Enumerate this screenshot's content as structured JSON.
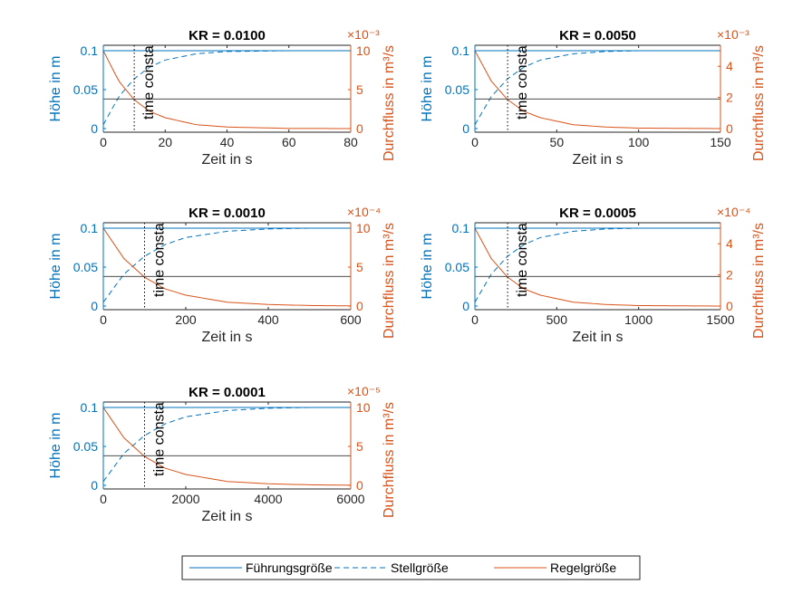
{
  "figure": {
    "legend": {
      "placement": "bottom-center",
      "entries": [
        {
          "label": "Führungsgröße",
          "style": "solid",
          "color": "#0072BD"
        },
        {
          "label": "Stellgröße",
          "style": "dashed",
          "color": "#0072BD"
        },
        {
          "label": "Regelgröße",
          "style": "solid",
          "color": "#D95319"
        }
      ]
    },
    "colors": {
      "left_axis": "#0072BD",
      "right_axis": "#D95319",
      "black": "#000000"
    }
  },
  "chart_data": [
    {
      "type": "line",
      "title": "KR = 0.0100",
      "xlabel": "Zeit in s",
      "ylabel_left": "Höhe in m",
      "ylabel_right": "Durchfluss in m³/s",
      "right_exponent": "×10⁻³",
      "xlim": [
        0,
        80
      ],
      "xticks": [
        "0",
        "20",
        "40",
        "60",
        "80"
      ],
      "ylim_left": [
        0,
        0.1
      ],
      "yticks_left": [
        "0",
        "0.05",
        "0.1"
      ],
      "ylim_right": [
        0,
        10
      ],
      "yticks_right": [
        "0",
        "5",
        "10"
      ],
      "time_constant": 10,
      "time_constant_label": "time constant",
      "series": [
        {
          "name": "Führungsgröße",
          "axis": "left",
          "x": [
            0,
            80
          ],
          "y": [
            0.1,
            0.1
          ]
        },
        {
          "name": "Stellgröße",
          "axis": "left",
          "x": [
            0,
            5,
            10,
            15,
            20,
            30,
            40,
            60,
            80
          ],
          "y": [
            0.005,
            0.041,
            0.064,
            0.079,
            0.088,
            0.096,
            0.099,
            0.1,
            0.1
          ]
        },
        {
          "name": "Regelgröße",
          "axis": "right",
          "x": [
            0,
            5,
            10,
            15,
            20,
            30,
            40,
            60,
            80
          ],
          "y": [
            10,
            6.1,
            3.7,
            2.2,
            1.4,
            0.5,
            0.2,
            0.02,
            0
          ]
        },
        {
          "name": "",
          "axis": "left",
          "x": [
            0,
            80
          ],
          "y": [
            0.038,
            0.038
          ]
        }
      ]
    },
    {
      "type": "line",
      "title": "KR = 0.0050",
      "xlabel": "Zeit in s",
      "ylabel_left": "Höhe in m",
      "ylabel_right": "Durchfluss in m³/s",
      "right_exponent": "×10⁻³",
      "xlim": [
        0,
        150
      ],
      "xticks": [
        "0",
        "50",
        "100",
        "150"
      ],
      "ylim_left": [
        0,
        0.1
      ],
      "yticks_left": [
        "0",
        "0.05",
        "0.1"
      ],
      "ylim_right": [
        0,
        5
      ],
      "yticks_right": [
        "0",
        "2",
        "4"
      ],
      "time_constant": 20,
      "time_constant_label": "time constant",
      "series": [
        {
          "name": "Führungsgröße",
          "axis": "left",
          "x": [
            0,
            150
          ],
          "y": [
            0.1,
            0.1
          ]
        },
        {
          "name": "Stellgröße",
          "axis": "left",
          "x": [
            0,
            10,
            20,
            30,
            40,
            60,
            80,
            100,
            150
          ],
          "y": [
            0.005,
            0.041,
            0.064,
            0.079,
            0.088,
            0.096,
            0.099,
            0.1,
            0.1
          ]
        },
        {
          "name": "Regelgröße",
          "axis": "right",
          "x": [
            0,
            10,
            20,
            30,
            40,
            60,
            80,
            100,
            150
          ],
          "y": [
            5,
            3.05,
            1.85,
            1.1,
            0.7,
            0.25,
            0.1,
            0.03,
            0
          ]
        },
        {
          "name": "",
          "axis": "left",
          "x": [
            0,
            150
          ],
          "y": [
            0.038,
            0.038
          ]
        }
      ]
    },
    {
      "type": "line",
      "title": "KR = 0.0010",
      "xlabel": "Zeit in s",
      "ylabel_left": "Höhe in m",
      "ylabel_right": "Durchfluss in m³/s",
      "right_exponent": "×10⁻⁴",
      "xlim": [
        0,
        600
      ],
      "xticks": [
        "0",
        "200",
        "400",
        "600"
      ],
      "ylim_left": [
        0,
        0.1
      ],
      "yticks_left": [
        "0",
        "0.05",
        "0.1"
      ],
      "ylim_right": [
        0,
        10
      ],
      "yticks_right": [
        "0",
        "5",
        "10"
      ],
      "time_constant": 100,
      "time_constant_label": "time constant",
      "series": [
        {
          "name": "Führungsgröße",
          "axis": "left",
          "x": [
            0,
            600
          ],
          "y": [
            0.1,
            0.1
          ]
        },
        {
          "name": "Stellgröße",
          "axis": "left",
          "x": [
            0,
            50,
            100,
            150,
            200,
            300,
            400,
            500,
            600
          ],
          "y": [
            0.005,
            0.041,
            0.064,
            0.079,
            0.088,
            0.096,
            0.099,
            0.1,
            0.1
          ]
        },
        {
          "name": "Regelgröße",
          "axis": "right",
          "x": [
            0,
            50,
            100,
            150,
            200,
            300,
            400,
            500,
            600
          ],
          "y": [
            10,
            6.1,
            3.7,
            2.2,
            1.4,
            0.5,
            0.2,
            0.07,
            0.02
          ]
        },
        {
          "name": "",
          "axis": "left",
          "x": [
            0,
            600
          ],
          "y": [
            0.038,
            0.038
          ]
        }
      ]
    },
    {
      "type": "line",
      "title": "KR = 0.0005",
      "xlabel": "Zeit in s",
      "ylabel_left": "Höhe in m",
      "ylabel_right": "Durchfluss in m³/s",
      "right_exponent": "×10⁻⁴",
      "xlim": [
        0,
        1500
      ],
      "xticks": [
        "0",
        "500",
        "1000",
        "1500"
      ],
      "ylim_left": [
        0,
        0.1
      ],
      "yticks_left": [
        "0",
        "0.05",
        "0.1"
      ],
      "ylim_right": [
        0,
        5
      ],
      "yticks_right": [
        "0",
        "2",
        "4"
      ],
      "time_constant": 200,
      "time_constant_label": "time constant",
      "series": [
        {
          "name": "Führungsgröße",
          "axis": "left",
          "x": [
            0,
            1500
          ],
          "y": [
            0.1,
            0.1
          ]
        },
        {
          "name": "Stellgröße",
          "axis": "left",
          "x": [
            0,
            100,
            200,
            300,
            400,
            600,
            800,
            1000,
            1500
          ],
          "y": [
            0.005,
            0.041,
            0.064,
            0.079,
            0.088,
            0.096,
            0.099,
            0.1,
            0.1
          ]
        },
        {
          "name": "Regelgröße",
          "axis": "right",
          "x": [
            0,
            100,
            200,
            300,
            400,
            600,
            800,
            1000,
            1500
          ],
          "y": [
            5,
            3.05,
            1.85,
            1.1,
            0.7,
            0.25,
            0.1,
            0.03,
            0
          ]
        },
        {
          "name": "",
          "axis": "left",
          "x": [
            0,
            1500
          ],
          "y": [
            0.038,
            0.038
          ]
        }
      ]
    },
    {
      "type": "line",
      "title": "KR = 0.0001",
      "xlabel": "Zeit in s",
      "ylabel_left": "Höhe in m",
      "ylabel_right": "Durchfluss in m³/s",
      "right_exponent": "×10⁻⁵",
      "xlim": [
        0,
        6000
      ],
      "xticks": [
        "0",
        "2000",
        "4000",
        "6000"
      ],
      "ylim_left": [
        0,
        0.1
      ],
      "yticks_left": [
        "0",
        "0.05",
        "0.1"
      ],
      "ylim_right": [
        0,
        10
      ],
      "yticks_right": [
        "0",
        "5",
        "10"
      ],
      "time_constant": 1000,
      "time_constant_label": "time constant",
      "series": [
        {
          "name": "Führungsgröße",
          "axis": "left",
          "x": [
            0,
            6000
          ],
          "y": [
            0.1,
            0.1
          ]
        },
        {
          "name": "Stellgröße",
          "axis": "left",
          "x": [
            0,
            500,
            1000,
            1500,
            2000,
            3000,
            4000,
            5000,
            6000
          ],
          "y": [
            0.005,
            0.041,
            0.064,
            0.079,
            0.088,
            0.096,
            0.099,
            0.1,
            0.1
          ]
        },
        {
          "name": "Regelgröße",
          "axis": "right",
          "x": [
            0,
            500,
            1000,
            1500,
            2000,
            3000,
            4000,
            5000,
            6000
          ],
          "y": [
            10,
            6.1,
            3.7,
            2.2,
            1.4,
            0.5,
            0.2,
            0.07,
            0.02
          ]
        },
        {
          "name": "",
          "axis": "left",
          "x": [
            0,
            6000
          ],
          "y": [
            0.038,
            0.038
          ]
        }
      ]
    }
  ]
}
